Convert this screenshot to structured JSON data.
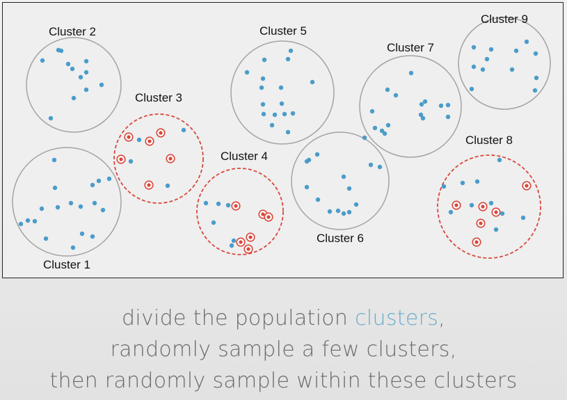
{
  "colors": {
    "point": "#4a9cc9",
    "sampled_ring": "#d9473b",
    "circle_unsampled": "#a3a3a3",
    "circle_sampled": "#d9473b",
    "caption_text": "#6a6a6a",
    "caption_accent": "#6aaecb"
  },
  "clusters": [
    {
      "label": "Cluster 1",
      "sampled": false
    },
    {
      "label": "Cluster 2",
      "sampled": false
    },
    {
      "label": "Cluster 3",
      "sampled": true
    },
    {
      "label": "Cluster 4",
      "sampled": true
    },
    {
      "label": "Cluster 5",
      "sampled": false
    },
    {
      "label": "Cluster 6",
      "sampled": false
    },
    {
      "label": "Cluster 7",
      "sampled": false
    },
    {
      "label": "Cluster 8",
      "sampled": true
    },
    {
      "label": "Cluster 9",
      "sampled": false
    }
  ],
  "caption": {
    "line1_pre": "divide the population ",
    "line1_accent": "clusters",
    "line1_post": ",",
    "line2": "randomly sample a few clusters,",
    "line3": "then randomly sample within these clusters"
  }
}
